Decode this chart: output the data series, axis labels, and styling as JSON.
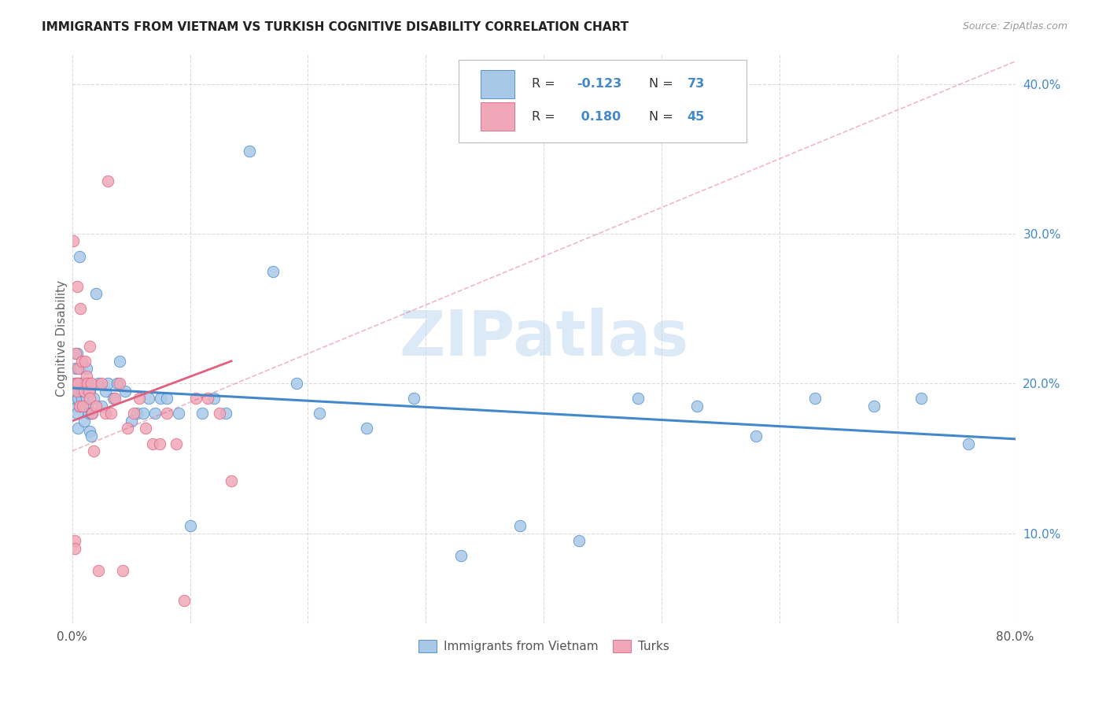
{
  "title": "IMMIGRANTS FROM VIETNAM VS TURKISH COGNITIVE DISABILITY CORRELATION CHART",
  "source": "Source: ZipAtlas.com",
  "ylabel": "Cognitive Disability",
  "xlim": [
    0,
    0.8
  ],
  "ylim": [
    0.04,
    0.42
  ],
  "xtick_positions": [
    0.0,
    0.1,
    0.2,
    0.3,
    0.4,
    0.5,
    0.6,
    0.7,
    0.8
  ],
  "xticklabels": [
    "0.0%",
    "",
    "",
    "",
    "",
    "",
    "",
    "",
    "80.0%"
  ],
  "ytick_positions": [
    0.1,
    0.2,
    0.3,
    0.4
  ],
  "yticklabels": [
    "10.0%",
    "20.0%",
    "30.0%",
    "40.0%"
  ],
  "watermark": "ZIPatlas",
  "color_vietnam": "#a8c8e8",
  "color_turks": "#f0a8b8",
  "line_vietnam_color": "#4488cc",
  "line_turks_color": "#e06080",
  "background_color": "#ffffff",
  "vietnam_x": [
    0.001,
    0.001,
    0.002,
    0.002,
    0.003,
    0.003,
    0.003,
    0.004,
    0.004,
    0.004,
    0.005,
    0.005,
    0.005,
    0.006,
    0.006,
    0.006,
    0.007,
    0.007,
    0.008,
    0.008,
    0.009,
    0.01,
    0.01,
    0.011,
    0.011,
    0.012,
    0.012,
    0.013,
    0.013,
    0.014,
    0.015,
    0.015,
    0.016,
    0.016,
    0.017,
    0.018,
    0.02,
    0.022,
    0.025,
    0.028,
    0.03,
    0.035,
    0.038,
    0.04,
    0.045,
    0.05,
    0.055,
    0.06,
    0.065,
    0.07,
    0.075,
    0.08,
    0.09,
    0.1,
    0.11,
    0.12,
    0.13,
    0.15,
    0.17,
    0.19,
    0.21,
    0.25,
    0.29,
    0.33,
    0.38,
    0.43,
    0.48,
    0.53,
    0.58,
    0.63,
    0.68,
    0.72,
    0.76
  ],
  "vietnam_y": [
    0.195,
    0.19,
    0.2,
    0.185,
    0.21,
    0.19,
    0.195,
    0.2,
    0.18,
    0.22,
    0.19,
    0.2,
    0.17,
    0.195,
    0.21,
    0.285,
    0.2,
    0.185,
    0.19,
    0.195,
    0.2,
    0.175,
    0.195,
    0.185,
    0.2,
    0.19,
    0.21,
    0.185,
    0.2,
    0.18,
    0.195,
    0.168,
    0.18,
    0.165,
    0.18,
    0.19,
    0.26,
    0.2,
    0.185,
    0.195,
    0.2,
    0.19,
    0.2,
    0.215,
    0.195,
    0.175,
    0.18,
    0.18,
    0.19,
    0.18,
    0.19,
    0.19,
    0.18,
    0.105,
    0.18,
    0.19,
    0.18,
    0.355,
    0.275,
    0.2,
    0.18,
    0.17,
    0.19,
    0.085,
    0.105,
    0.095,
    0.19,
    0.185,
    0.165,
    0.19,
    0.185,
    0.19,
    0.16
  ],
  "turks_x": [
    0.001,
    0.002,
    0.002,
    0.003,
    0.003,
    0.004,
    0.004,
    0.005,
    0.005,
    0.006,
    0.007,
    0.008,
    0.009,
    0.01,
    0.011,
    0.012,
    0.013,
    0.014,
    0.015,
    0.015,
    0.016,
    0.017,
    0.018,
    0.02,
    0.022,
    0.025,
    0.028,
    0.03,
    0.033,
    0.036,
    0.04,
    0.043,
    0.047,
    0.052,
    0.057,
    0.062,
    0.068,
    0.074,
    0.08,
    0.088,
    0.095,
    0.105,
    0.115,
    0.125,
    0.135
  ],
  "turks_y": [
    0.295,
    0.095,
    0.09,
    0.2,
    0.22,
    0.195,
    0.265,
    0.21,
    0.2,
    0.185,
    0.25,
    0.215,
    0.185,
    0.195,
    0.215,
    0.205,
    0.2,
    0.195,
    0.19,
    0.225,
    0.2,
    0.18,
    0.155,
    0.185,
    0.075,
    0.2,
    0.18,
    0.335,
    0.18,
    0.19,
    0.2,
    0.075,
    0.17,
    0.18,
    0.19,
    0.17,
    0.16,
    0.16,
    0.18,
    0.16,
    0.055,
    0.19,
    0.19,
    0.18,
    0.135
  ],
  "trend_viet_x0": 0.0,
  "trend_viet_x1": 0.8,
  "trend_viet_y0": 0.197,
  "trend_viet_y1": 0.163,
  "trend_turk_x0": 0.0,
  "trend_turk_x1": 0.135,
  "trend_turk_y0": 0.175,
  "trend_turk_y1": 0.215,
  "trend_turk_dash_x0": 0.0,
  "trend_turk_dash_x1": 0.8,
  "trend_turk_dash_y0": 0.155,
  "trend_turk_dash_y1": 0.415
}
